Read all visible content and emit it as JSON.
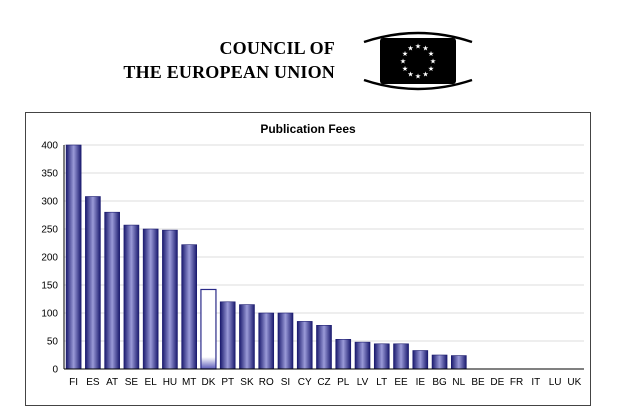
{
  "header": {
    "org_line1": "COUNCIL OF",
    "org_line2": "THE EUROPEAN UNION",
    "logo_icon": "eu-council-logo-icon"
  },
  "colors": {
    "bar_dark": "#1a1a6e",
    "bar_mid": "#3b3ba0",
    "bar_light": "#9a9ad8",
    "bar_highlight_edge": "#2a2a88",
    "grid": "#d0d0d0",
    "axis": "#000000"
  },
  "chart_data": {
    "type": "bar",
    "title": "Publication Fees",
    "xlabel": "",
    "ylabel": "",
    "ylim": [
      0,
      400
    ],
    "yticks": [
      0,
      50,
      100,
      150,
      200,
      250,
      300,
      350,
      400
    ],
    "grid": true,
    "legend": "none",
    "categories": [
      "FI",
      "ES",
      "AT",
      "SE",
      "EL",
      "HU",
      "MT",
      "DK",
      "PT",
      "SK",
      "RO",
      "SI",
      "CY",
      "CZ",
      "PL",
      "LV",
      "LT",
      "EE",
      "IE",
      "BG",
      "NL",
      "BE",
      "DE",
      "FR",
      "IT",
      "LU",
      "UK"
    ],
    "values": [
      400,
      308,
      280,
      257,
      250,
      248,
      222,
      142,
      120,
      115,
      100,
      100,
      85,
      78,
      53,
      48,
      45,
      45,
      33,
      25,
      24,
      0,
      0,
      0,
      0,
      0,
      0
    ],
    "highlighted": [
      "DK"
    ]
  }
}
